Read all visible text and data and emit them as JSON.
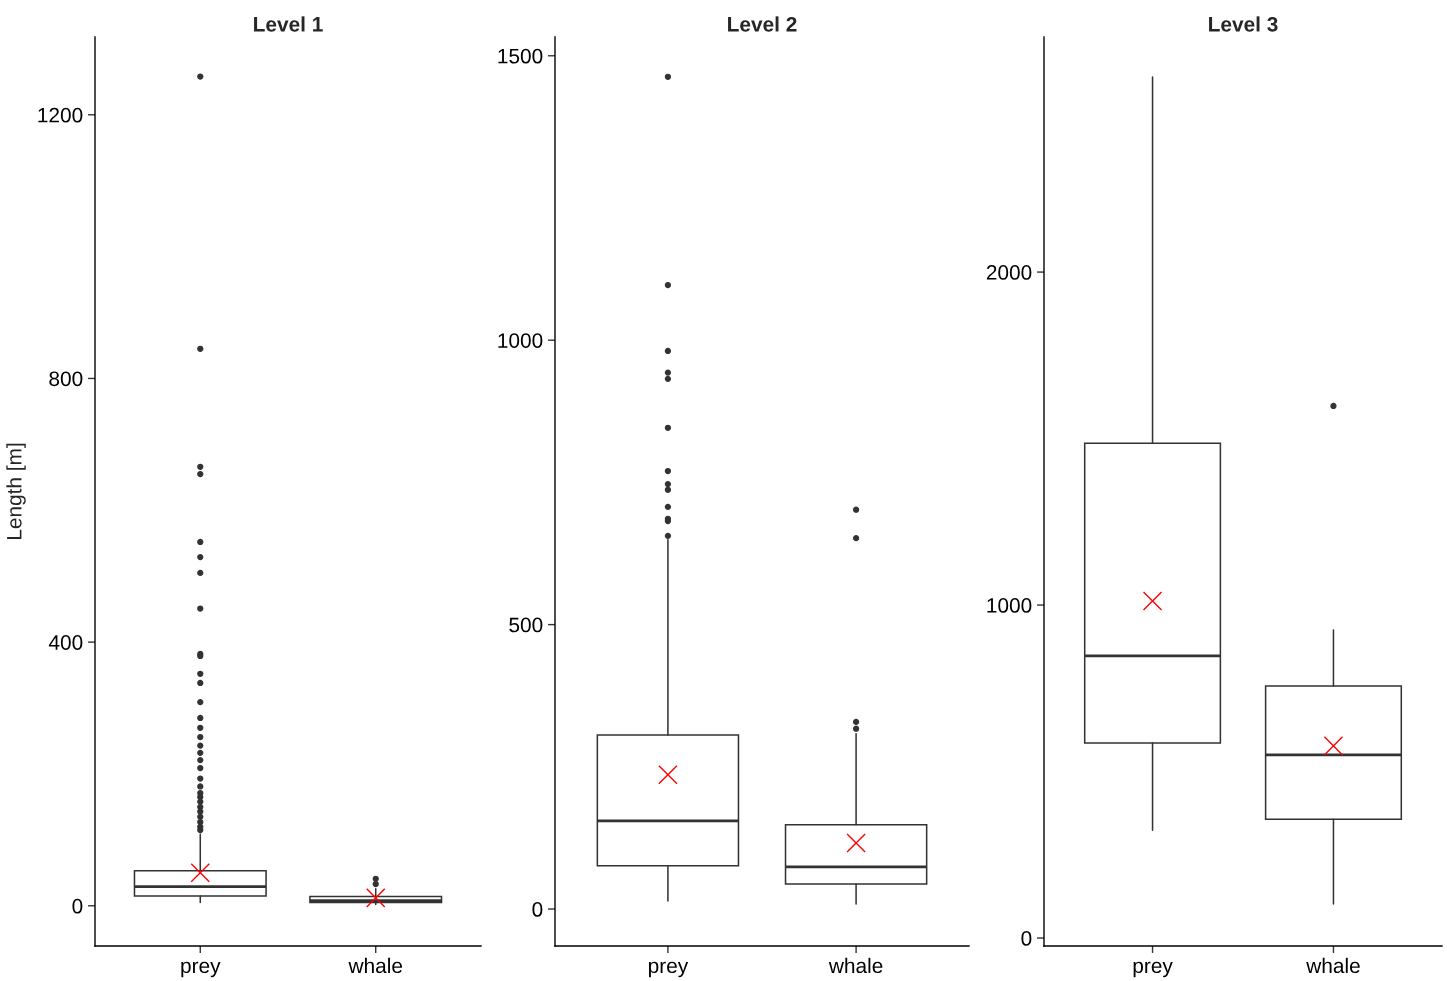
{
  "chart_data": [
    {
      "type": "box",
      "title": "Level 1",
      "ylabel": "Length [m]",
      "categories": [
        "prey",
        "whale"
      ],
      "ylim": [
        -61,
        1318
      ],
      "yticks": [
        0,
        400,
        800,
        1200
      ],
      "grid": false,
      "boxes": [
        {
          "low": 5,
          "q1": 15,
          "median": 29,
          "q3": 53,
          "high": 109,
          "mean": 50,
          "outliers": [
            1258,
            845,
            666,
            655,
            552,
            529,
            505,
            451,
            382,
            379,
            352,
            338,
            309,
            285,
            270,
            256,
            243,
            232,
            221,
            209,
            193,
            181,
            171,
            165,
            158,
            150,
            143,
            135,
            127,
            120,
            115
          ]
        },
        {
          "low": 2,
          "q1": 5,
          "median": 8,
          "q3": 14,
          "high": 26,
          "mean": 12,
          "outliers": [
            41,
            33
          ]
        }
      ]
    },
    {
      "type": "box",
      "title": "Level 2",
      "categories": [
        "prey",
        "whale"
      ],
      "ylim": [
        -65,
        1533
      ],
      "yticks": [
        0,
        500,
        1000,
        1500
      ],
      "grid": false,
      "boxes": [
        {
          "low": 14,
          "q1": 76,
          "median": 155,
          "q3": 306,
          "high": 649,
          "mean": 236,
          "outliers": [
            1463,
            1097,
            981,
            943,
            932,
            846,
            770,
            747,
            737,
            707,
            686,
            682,
            656
          ]
        },
        {
          "low": 9,
          "q1": 44,
          "median": 74,
          "q3": 148,
          "high": 308,
          "mean": 116,
          "outliers": [
            702,
            652,
            329,
            317
          ]
        }
      ]
    },
    {
      "type": "box",
      "title": "Level 3",
      "categories": [
        "prey",
        "whale"
      ],
      "ylim": [
        -24,
        2706
      ],
      "yticks": [
        0,
        1000,
        2000
      ],
      "grid": false,
      "boxes": [
        {
          "low": 324,
          "q1": 586,
          "median": 847,
          "q3": 1486,
          "high": 2586,
          "mean": 1012
        },
        {
          "low": 102,
          "q1": 357,
          "median": 550,
          "q3": 757,
          "high": 925,
          "mean": 577,
          "outliers": [
            1598
          ]
        }
      ]
    }
  ]
}
